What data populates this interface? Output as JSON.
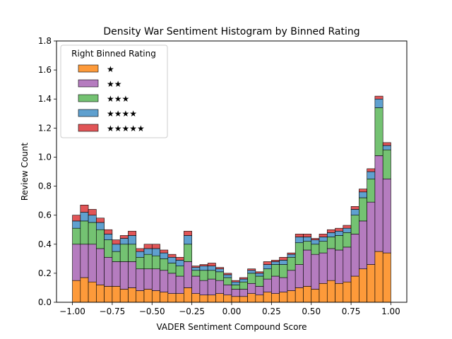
{
  "chart_data": {
    "type": "bar",
    "stacked": true,
    "title": "Density War Sentiment Histogram by Binned Rating",
    "xlabel": "VADER Sentiment Compound Score",
    "ylabel": "Review Count",
    "xlim": [
      -1.1,
      1.1
    ],
    "ylim": [
      0,
      1.8
    ],
    "xticks": [
      "−1.00",
      "−0.75",
      "−0.50",
      "−0.25",
      "0.00",
      "0.25",
      "0.50",
      "0.75",
      "1.00"
    ],
    "xtick_values": [
      -1.0,
      -0.75,
      -0.5,
      -0.25,
      0.0,
      0.25,
      0.5,
      0.75,
      1.0
    ],
    "yticks": [
      "0.0",
      "0.2",
      "0.4",
      "0.6",
      "0.8",
      "1.0",
      "1.2",
      "1.4",
      "1.6",
      "1.8"
    ],
    "ytick_values": [
      0.0,
      0.2,
      0.4,
      0.6,
      0.8,
      1.0,
      1.2,
      1.4,
      1.6,
      1.8
    ],
    "bin_start": -1.0,
    "bin_width": 0.05,
    "legend": {
      "title": "Right Binned Rating",
      "position": "upper left"
    },
    "series": [
      {
        "name": "★",
        "color": "#fd9a3a",
        "values": [
          0.15,
          0.17,
          0.14,
          0.12,
          0.11,
          0.11,
          0.09,
          0.1,
          0.08,
          0.09,
          0.08,
          0.07,
          0.06,
          0.06,
          0.1,
          0.06,
          0.05,
          0.05,
          0.06,
          0.05,
          0.04,
          0.04,
          0.06,
          0.05,
          0.07,
          0.06,
          0.07,
          0.08,
          0.1,
          0.11,
          0.09,
          0.13,
          0.15,
          0.13,
          0.14,
          0.18,
          0.23,
          0.26,
          0.35,
          0.34
        ]
      },
      {
        "name": "★★",
        "color": "#b57cbf",
        "values": [
          0.25,
          0.23,
          0.26,
          0.25,
          0.2,
          0.17,
          0.19,
          0.18,
          0.15,
          0.14,
          0.15,
          0.15,
          0.14,
          0.12,
          0.18,
          0.12,
          0.1,
          0.11,
          0.09,
          0.07,
          0.05,
          0.05,
          0.07,
          0.06,
          0.09,
          0.12,
          0.1,
          0.14,
          0.16,
          0.25,
          0.24,
          0.21,
          0.22,
          0.23,
          0.24,
          0.29,
          0.33,
          0.43,
          0.66,
          0.51
        ]
      },
      {
        "name": "★★★",
        "color": "#74c272",
        "values": [
          0.11,
          0.16,
          0.15,
          0.13,
          0.12,
          0.07,
          0.12,
          0.12,
          0.08,
          0.1,
          0.09,
          0.08,
          0.07,
          0.07,
          0.12,
          0.04,
          0.07,
          0.06,
          0.06,
          0.05,
          0.03,
          0.05,
          0.07,
          0.07,
          0.07,
          0.08,
          0.09,
          0.09,
          0.15,
          0.06,
          0.07,
          0.08,
          0.08,
          0.1,
          0.1,
          0.13,
          0.16,
          0.16,
          0.33,
          0.2
        ]
      },
      {
        "name": "★★★★",
        "color": "#5fa0cf",
        "values": [
          0.05,
          0.06,
          0.05,
          0.05,
          0.04,
          0.05,
          0.04,
          0.06,
          0.04,
          0.04,
          0.05,
          0.04,
          0.04,
          0.04,
          0.06,
          0.02,
          0.03,
          0.03,
          0.02,
          0.02,
          0.02,
          0.02,
          0.02,
          0.02,
          0.03,
          0.02,
          0.03,
          0.02,
          0.04,
          0.03,
          0.03,
          0.03,
          0.03,
          0.03,
          0.03,
          0.04,
          0.04,
          0.05,
          0.06,
          0.03
        ]
      },
      {
        "name": "★★★★★",
        "color": "#e15557",
        "values": [
          0.04,
          0.05,
          0.04,
          0.03,
          0.03,
          0.03,
          0.02,
          0.03,
          0.02,
          0.03,
          0.03,
          0.02,
          0.02,
          0.02,
          0.03,
          0.01,
          0.01,
          0.02,
          0.01,
          0.01,
          0.01,
          0.01,
          0.01,
          0.01,
          0.02,
          0.01,
          0.02,
          0.01,
          0.02,
          0.02,
          0.01,
          0.02,
          0.02,
          0.02,
          0.02,
          0.02,
          0.02,
          0.02,
          0.02,
          0.02
        ]
      }
    ]
  }
}
